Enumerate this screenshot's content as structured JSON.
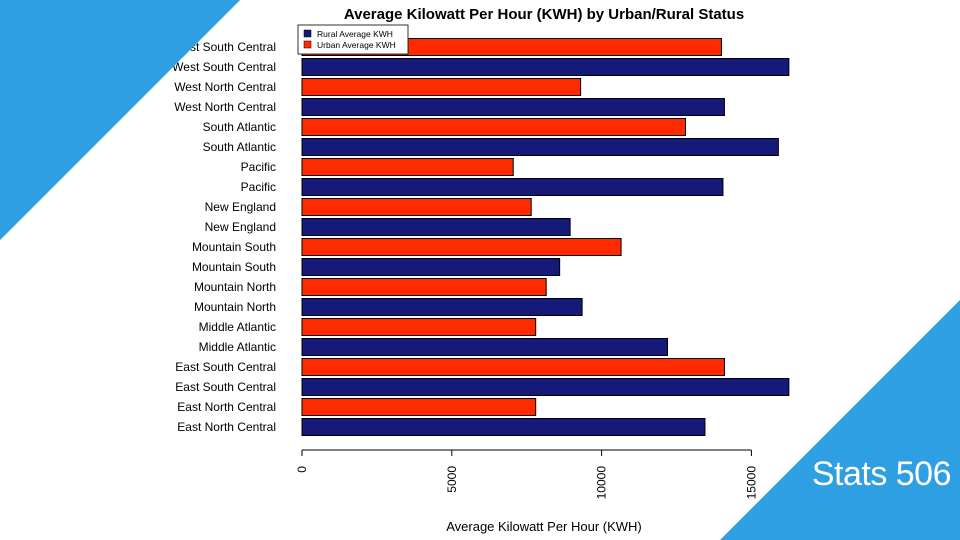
{
  "slide": {
    "tag": "Stats 506",
    "accent_color": "#2e9fe3"
  },
  "chart_data": {
    "type": "bar",
    "orientation": "horizontal",
    "title": "Average Kilowatt Per Hour (KWH) by Urban/Rural Status",
    "xlabel": "Average Kilowatt Per Hour (KWH)",
    "ylabel": "",
    "xlim": [
      0,
      16500
    ],
    "xticks": [
      0,
      5000,
      10000,
      15000
    ],
    "legend_position": "top-left",
    "legend": [
      {
        "name": "Rural Average KWH",
        "color": "#14197a"
      },
      {
        "name": "Urban Average KWH",
        "color": "#ff2a00"
      }
    ],
    "categories_top_to_bottom": [
      "West South Central",
      "West South Central",
      "West North Central",
      "West North Central",
      "South Atlantic",
      "South Atlantic",
      "Pacific",
      "Pacific",
      "New England",
      "New England",
      "Mountain South",
      "Mountain South",
      "Mountain North",
      "Mountain North",
      "Middle Atlantic",
      "Middle Atlantic",
      "East South Central",
      "East South Central",
      "East North Central",
      "East North Central"
    ],
    "series_top_to_bottom": [
      "Urban Average KWH",
      "Rural Average KWH",
      "Urban Average KWH",
      "Rural Average KWH",
      "Urban Average KWH",
      "Rural Average KWH",
      "Urban Average KWH",
      "Rural Average KWH",
      "Urban Average KWH",
      "Rural Average KWH",
      "Urban Average KWH",
      "Rural Average KWH",
      "Urban Average KWH",
      "Rural Average KWH",
      "Urban Average KWH",
      "Rural Average KWH",
      "Urban Average KWH",
      "Rural Average KWH",
      "Urban Average KWH",
      "Rural Average KWH"
    ],
    "values_top_to_bottom": [
      14000,
      16250,
      9300,
      14100,
      12800,
      15900,
      7050,
      14050,
      7650,
      8950,
      10650,
      8600,
      8150,
      9350,
      7800,
      12200,
      14100,
      16250,
      7800,
      13450
    ]
  }
}
